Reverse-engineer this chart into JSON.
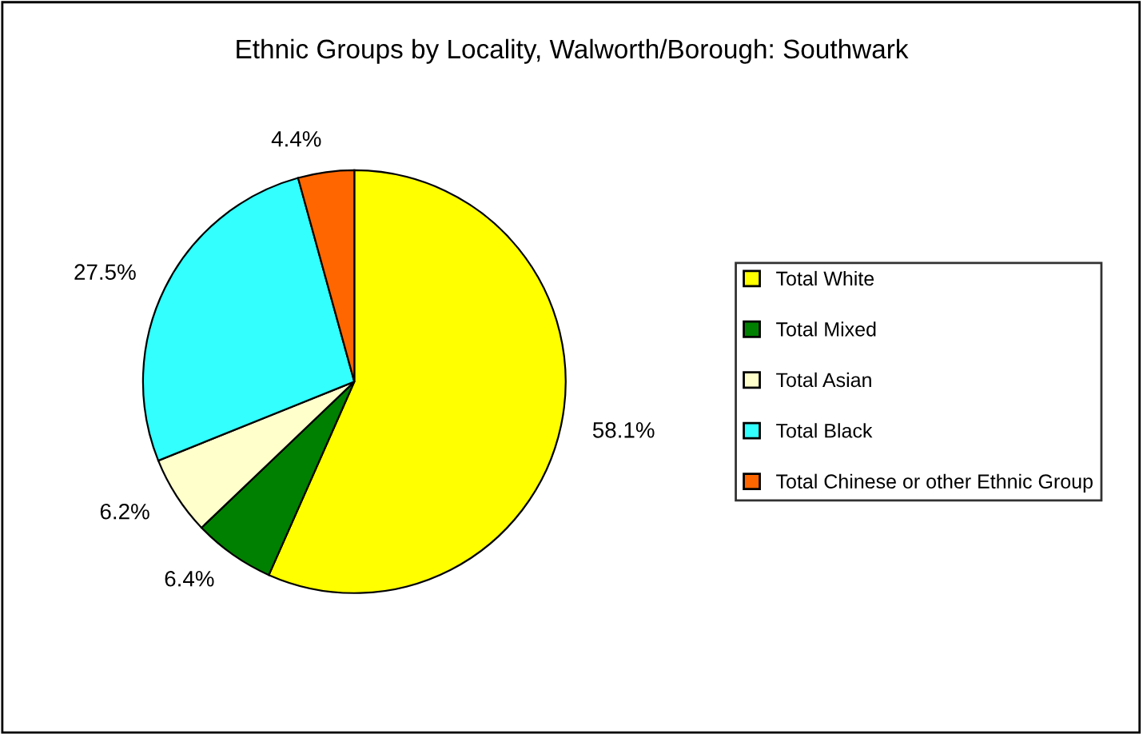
{
  "chart_data": {
    "type": "pie",
    "title": "Ethnic Groups by Locality, Walworth/Borough: Southwark",
    "categories": [
      "Total White",
      "Total Mixed",
      "Total Asian",
      "Total Black",
      "Total Chinese or other Ethnic Group"
    ],
    "values": [
      58.1,
      6.4,
      6.2,
      27.5,
      4.4
    ],
    "value_labels": [
      "58.1%",
      "6.4%",
      "6.2%",
      "27.5%",
      "4.4%"
    ],
    "colors": [
      "#ffff00",
      "#008000",
      "#ffffcc",
      "#33ffff",
      "#ff6600"
    ],
    "legend": "right"
  }
}
